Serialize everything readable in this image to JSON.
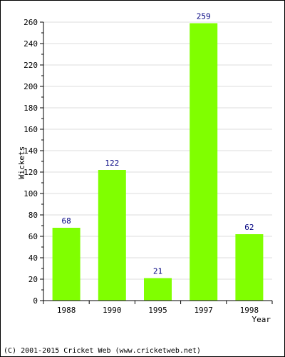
{
  "chart_data": {
    "type": "bar",
    "categories": [
      "1988",
      "1990",
      "1995",
      "1997",
      "1998"
    ],
    "values": [
      68,
      122,
      21,
      259,
      62
    ],
    "data_labels": [
      "68",
      "122",
      "21",
      "259",
      "62"
    ],
    "ylabel": "Wickets",
    "xlabel": "Year",
    "ylim": [
      0,
      260
    ],
    "y_major_ticks": [
      0,
      20,
      40,
      60,
      80,
      100,
      120,
      140,
      160,
      180,
      200,
      220,
      240,
      260
    ],
    "y_minor_step": 10,
    "grid": true,
    "legend": "none",
    "colors": {
      "bar": "#80ff00",
      "data_label": "#000080",
      "grid": "#dddddd",
      "axis": "#000000"
    }
  },
  "footer": {
    "credit": "(C) 2001-2015 Cricket Web (www.cricketweb.net)"
  }
}
